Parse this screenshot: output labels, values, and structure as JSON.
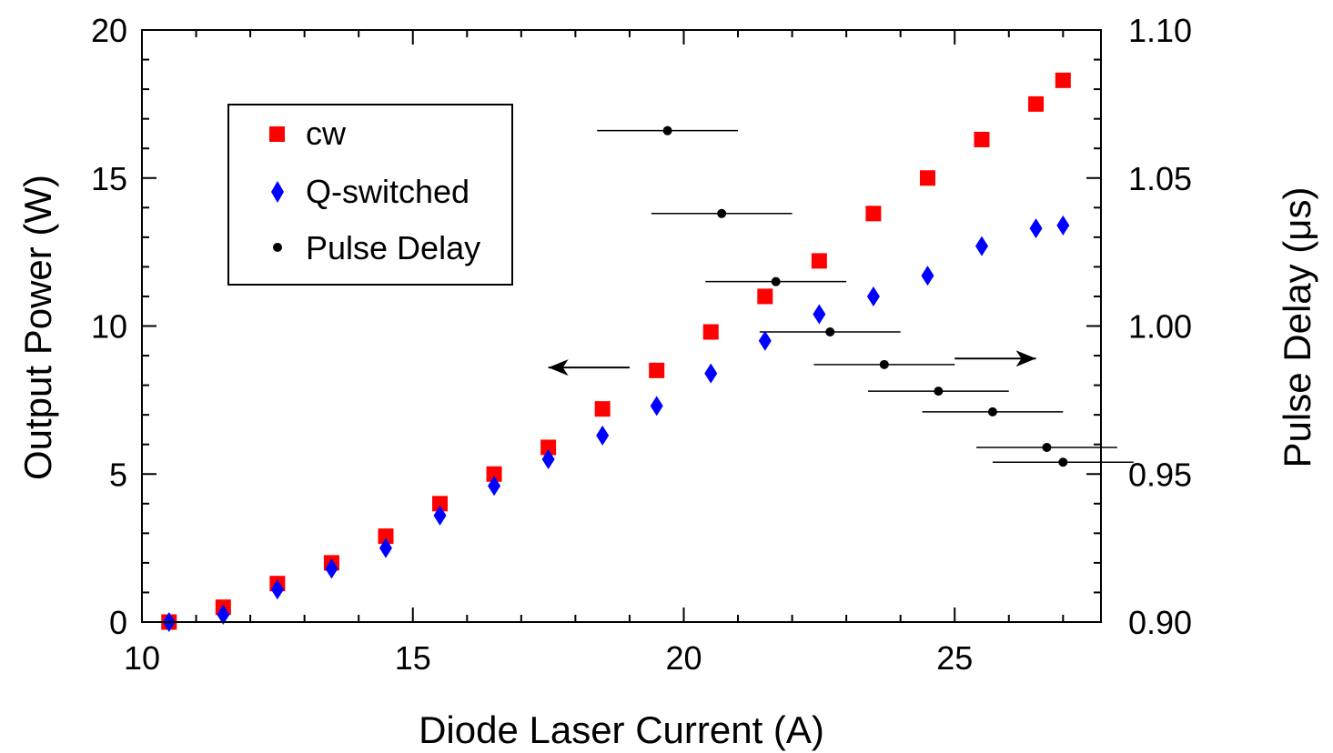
{
  "chart_data": {
    "type": "scatter",
    "xlabel": "Diode Laser Current (A)",
    "ylabel": "Output Power (W)",
    "y2label": "Pulse Delay (μs)",
    "xlim": [
      10,
      27.7
    ],
    "ylim": [
      0,
      20
    ],
    "y2lim": [
      0.9,
      1.1
    ],
    "xticks": [
      "10",
      "15",
      "20",
      "25"
    ],
    "yticks": [
      "0",
      "5",
      "10",
      "15",
      "20"
    ],
    "y2ticks": [
      "0.90",
      "0.95",
      "1.00",
      "1.05",
      "1.10"
    ],
    "legend_position": "upper-left",
    "series": [
      {
        "name": "cw",
        "axis": "left",
        "marker": "square",
        "color": "#ff0000",
        "points": [
          [
            10.5,
            0.0
          ],
          [
            11.5,
            0.5
          ],
          [
            12.5,
            1.3
          ],
          [
            13.5,
            2.0
          ],
          [
            14.5,
            2.9
          ],
          [
            15.5,
            4.0
          ],
          [
            16.5,
            5.0
          ],
          [
            17.5,
            5.9
          ],
          [
            18.5,
            7.2
          ],
          [
            19.5,
            8.5
          ],
          [
            20.5,
            9.8
          ],
          [
            21.5,
            11.0
          ],
          [
            22.5,
            12.2
          ],
          [
            23.5,
            13.8
          ],
          [
            24.5,
            15.0
          ],
          [
            25.5,
            16.3
          ],
          [
            26.5,
            17.5
          ],
          [
            27.0,
            18.3
          ]
        ]
      },
      {
        "name": "Q-switched",
        "axis": "left",
        "marker": "diamond",
        "color": "#0000ff",
        "points": [
          [
            10.5,
            0.0
          ],
          [
            11.5,
            0.25
          ],
          [
            12.5,
            1.1
          ],
          [
            13.5,
            1.8
          ],
          [
            14.5,
            2.5
          ],
          [
            15.5,
            3.6
          ],
          [
            16.5,
            4.6
          ],
          [
            17.5,
            5.5
          ],
          [
            18.5,
            6.3
          ],
          [
            19.5,
            7.3
          ],
          [
            20.5,
            8.4
          ],
          [
            21.5,
            9.5
          ],
          [
            22.5,
            10.4
          ],
          [
            23.5,
            11.0
          ],
          [
            24.5,
            11.7
          ],
          [
            25.5,
            12.7
          ],
          [
            26.5,
            13.3
          ],
          [
            27.0,
            13.4
          ]
        ]
      },
      {
        "name": "Pulse Delay",
        "axis": "right",
        "marker": "circle",
        "color": "#000000",
        "points": [
          [
            19.7,
            1.066,
            1.3
          ],
          [
            20.7,
            1.038,
            1.3
          ],
          [
            21.7,
            1.015,
            1.3
          ],
          [
            22.7,
            0.998,
            1.3
          ],
          [
            23.7,
            0.987,
            1.3
          ],
          [
            24.7,
            0.978,
            1.3
          ],
          [
            25.7,
            0.971,
            1.3
          ],
          [
            26.7,
            0.959,
            1.3
          ],
          [
            27.0,
            0.954,
            1.3
          ]
        ]
      }
    ],
    "annotations": [
      {
        "type": "arrow",
        "direction": "left",
        "x_from": 19.0,
        "x_to": 17.5,
        "y": 8.6,
        "axis": "left"
      },
      {
        "type": "arrow",
        "direction": "right",
        "x_from": 25.0,
        "x_to": 26.5,
        "y": 0.989,
        "axis": "right"
      }
    ]
  }
}
